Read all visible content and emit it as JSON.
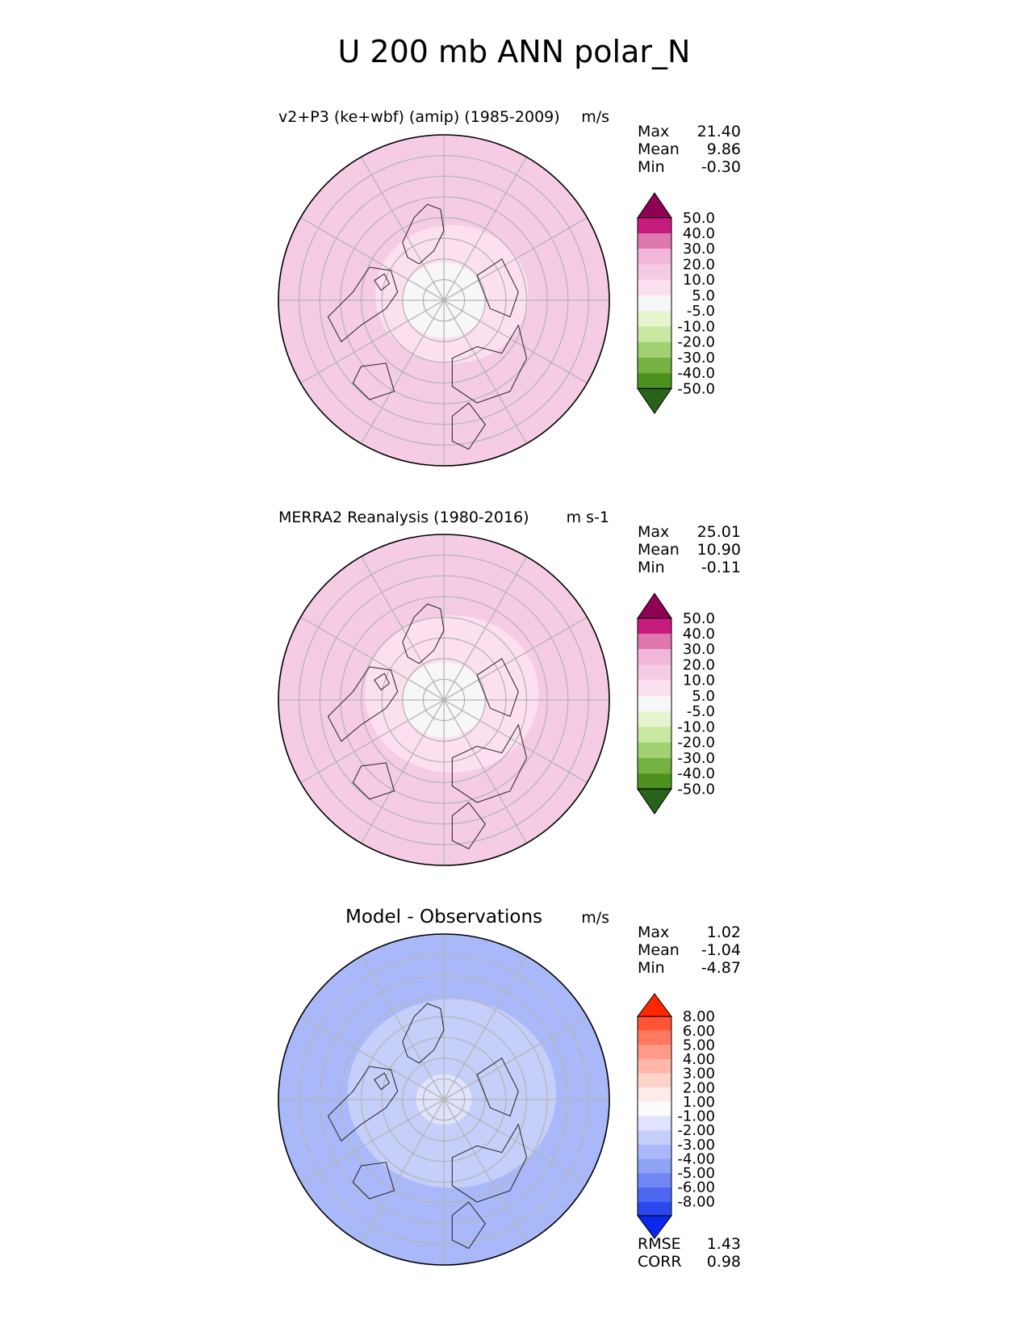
{
  "figure": {
    "title": "U 200 mb ANN polar_N"
  },
  "panels": [
    {
      "id": "test",
      "title": "v2+P3 (ke+wbf) (amip) (1985-2009)",
      "units": "m/s",
      "stats": [
        {
          "label": "Max",
          "value": "21.40"
        },
        {
          "label": "Mean",
          "value": "9.86"
        },
        {
          "label": "Min",
          "value": "-0.30"
        }
      ],
      "colorbar": {
        "labels": [
          "50.0",
          "40.0",
          "30.0",
          "20.0",
          "10.0",
          "5.0",
          "-5.0",
          "-10.0",
          "-20.0",
          "-30.0",
          "-40.0",
          "-50.0"
        ],
        "colors": [
          "#8e0152",
          "#c51b7d",
          "#de77ae",
          "#f1b6da",
          "#f5cce4",
          "#fde0ef",
          "#f7f7f7",
          "#e6f5d0",
          "#c9e8a2",
          "#a1d170",
          "#74b342",
          "#4d9221",
          "#276419"
        ]
      }
    },
    {
      "id": "ref",
      "title": "MERRA2 Reanalysis (1980-2016)",
      "units": "m s-1",
      "stats": [
        {
          "label": "Max",
          "value": "25.01"
        },
        {
          "label": "Mean",
          "value": "10.90"
        },
        {
          "label": "Min",
          "value": "-0.11"
        }
      ],
      "colorbar": {
        "labels": [
          "50.0",
          "40.0",
          "30.0",
          "20.0",
          "10.0",
          "5.0",
          "-5.0",
          "-10.0",
          "-20.0",
          "-30.0",
          "-40.0",
          "-50.0"
        ],
        "colors": [
          "#8e0152",
          "#c51b7d",
          "#de77ae",
          "#f1b6da",
          "#f5cce4",
          "#fde0ef",
          "#f7f7f7",
          "#e6f5d0",
          "#c9e8a2",
          "#a1d170",
          "#74b342",
          "#4d9221",
          "#276419"
        ]
      }
    },
    {
      "id": "diff",
      "title": "Model - Observations",
      "units": "m/s",
      "stats": [
        {
          "label": "Max",
          "value": "1.02"
        },
        {
          "label": "Mean",
          "value": "-1.04"
        },
        {
          "label": "Min",
          "value": "-4.87"
        }
      ],
      "extra_stats": [
        {
          "label": "RMSE",
          "value": "1.43"
        },
        {
          "label": "CORR",
          "value": "0.98"
        }
      ],
      "colorbar": {
        "labels": [
          "8.00",
          "6.00",
          "5.00",
          "4.00",
          "3.00",
          "2.00",
          "1.00",
          "-1.00",
          "-2.00",
          "-3.00",
          "-4.00",
          "-5.00",
          "-6.00",
          "-8.00"
        ],
        "colors": [
          "#ff2600",
          "#ff5535",
          "#ff7a61",
          "#ff9b88",
          "#ffb7a9",
          "#ffd3c9",
          "#ffecea",
          "#fbfbfb",
          "#dfe3fb",
          "#c6cffa",
          "#a9b8f8",
          "#8ea2f6",
          "#6f87f4",
          "#4d67f1",
          "#2b48ef",
          "#0a28ed"
        ]
      }
    }
  ],
  "chart_data": [
    {
      "type": "heatmap",
      "projection": "north-polar-stereographic",
      "title": "v2+P3 (ke+wbf) (amip) (1985-2009)",
      "units": "m/s",
      "variable": "U 200 mb ANN",
      "levels": [
        -50,
        -40,
        -30,
        -20,
        -10,
        -5,
        5,
        10,
        20,
        30,
        40,
        50
      ],
      "stats": {
        "max": 21.4,
        "mean": 9.86,
        "min": -0.3
      },
      "regions": [
        {
          "colat_min": 0,
          "colat_max": 12,
          "value": 0
        },
        {
          "colat_min": 12,
          "colat_max": 22,
          "value": 7
        },
        {
          "colat_min": 22,
          "colat_max": 50,
          "value": 15
        }
      ]
    },
    {
      "type": "heatmap",
      "projection": "north-polar-stereographic",
      "title": "MERRA2 Reanalysis (1980-2016)",
      "units": "m s-1",
      "variable": "U 200 mb ANN",
      "levels": [
        -50,
        -40,
        -30,
        -20,
        -10,
        -5,
        5,
        10,
        20,
        30,
        40,
        50
      ],
      "stats": {
        "max": 25.01,
        "mean": 10.9,
        "min": -0.11
      },
      "regions": [
        {
          "colat_min": 0,
          "colat_max": 12,
          "value": 0
        },
        {
          "colat_min": 12,
          "colat_max": 25,
          "value": 7
        },
        {
          "colat_min": 25,
          "colat_max": 50,
          "value": 15
        }
      ]
    },
    {
      "type": "heatmap",
      "projection": "north-polar-stereographic",
      "title": "Model - Observations",
      "units": "m/s",
      "variable": "U 200 mb ANN",
      "levels": [
        -8,
        -6,
        -5,
        -4,
        -3,
        -2,
        -1,
        1,
        2,
        3,
        4,
        5,
        6,
        8
      ],
      "stats": {
        "max": 1.02,
        "mean": -1.04,
        "min": -4.87,
        "rmse": 1.43,
        "corr": 0.98
      },
      "regions": [
        {
          "colat_min": 0,
          "colat_max": 8,
          "value": 0
        },
        {
          "colat_min": 12,
          "colat_max": 30,
          "value": -1.5
        },
        {
          "colat_min": 30,
          "colat_max": 50,
          "value": -2.5
        }
      ]
    }
  ]
}
